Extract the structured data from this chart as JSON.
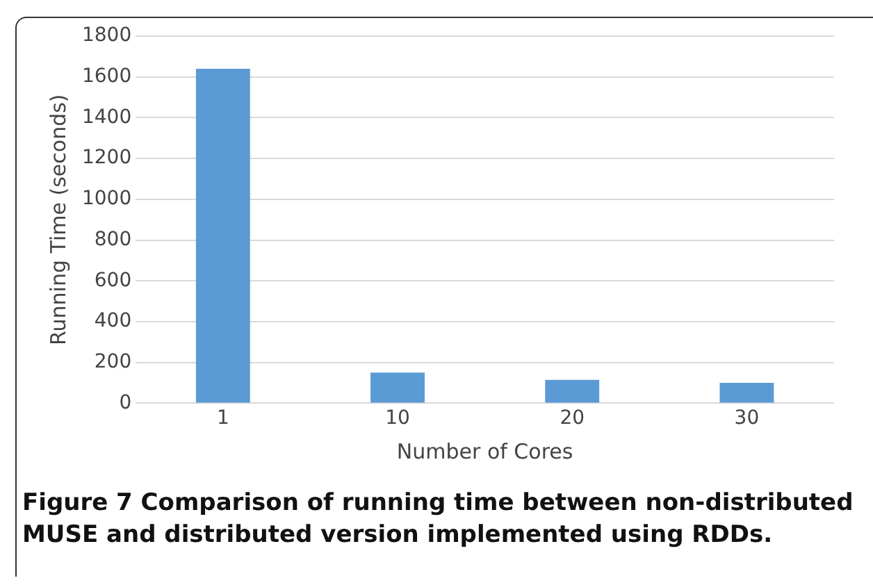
{
  "chart_data": {
    "type": "bar",
    "xlabel": "Number of Cores",
    "ylabel": "Running Time (seconds)",
    "categories": [
      "1",
      "10",
      "20",
      "30"
    ],
    "values": [
      1640,
      150,
      115,
      100
    ],
    "color": "#5b9bd5",
    "ylim": [
      0,
      1800
    ],
    "yticks": [
      0,
      200,
      400,
      600,
      800,
      1000,
      1200,
      1400,
      1600,
      1800
    ],
    "grid": "y",
    "legend": false,
    "annotations": [
      "Figure 7",
      "Comparison of running time between non-distributed MUSE and distributed version implemented using RDDs."
    ]
  }
}
